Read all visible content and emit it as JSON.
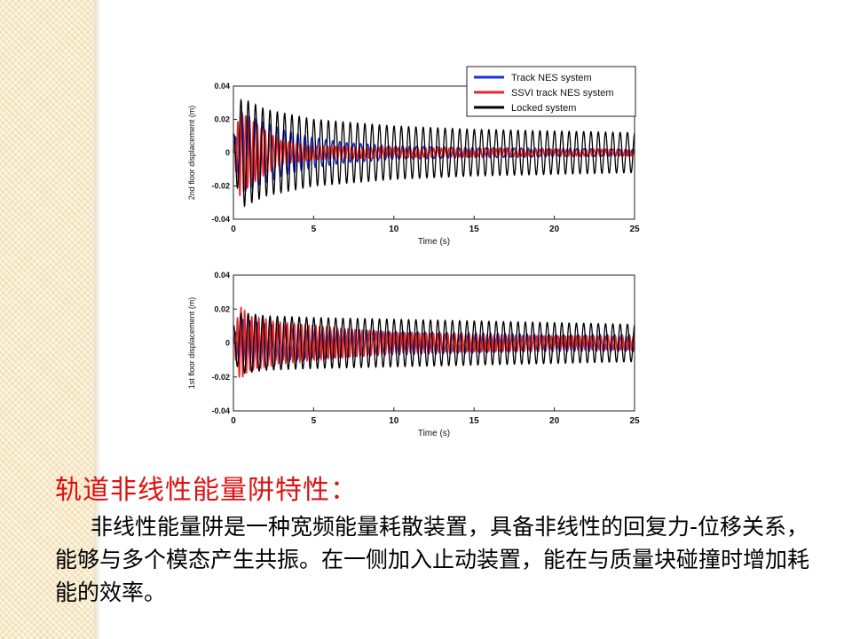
{
  "heading": "轨道非线性能量阱特性：",
  "body": "非线性能量阱是一种宽频能量耗散装置，具备非线性的回复力-位移关系，能够与多个模态产生共振。在一侧加入止动装置，能在与质量块碰撞时增加耗能的效率。",
  "chart_data": [
    {
      "type": "line",
      "xlabel": "Time (s)",
      "ylabel": "2nd floor displacement (m)",
      "xlim": [
        0,
        25
      ],
      "ylim": [
        -0.04,
        0.04
      ],
      "xticks": [
        "0",
        "5",
        "10",
        "15",
        "20",
        "25"
      ],
      "yticks": [
        "0.04",
        "0.02",
        "0",
        "-0.02",
        "-0.04"
      ],
      "legend_position": "top-right",
      "series": [
        {
          "name": "Track NES system",
          "color": "#1f2fe0",
          "frequency_hz": 2.3,
          "amplitude_envelope": {
            "t": [
              0,
              0.5,
              1.5,
              3,
              5,
              7,
              10,
              15,
              20,
              25
            ],
            "a": [
              0.005,
              0.024,
              0.02,
              0.014,
              0.009,
              0.006,
              0.004,
              0.003,
              0.0025,
              0.002
            ]
          }
        },
        {
          "name": "SSVI track NES system",
          "color": "#e8262a",
          "frequency_hz": 4.1,
          "amplitude_envelope": {
            "t": [
              0,
              0.4,
              1,
              2,
              3,
              5,
              10,
              15,
              20,
              25
            ],
            "a": [
              0.002,
              0.026,
              0.02,
              0.013,
              0.007,
              0.004,
              0.003,
              0.0025,
              0.002,
              0.002
            ]
          }
        },
        {
          "name": "Locked system",
          "color": "#000000",
          "frequency_hz": 2.2,
          "amplitude_envelope": {
            "t": [
              0,
              0.5,
              2,
              5,
              10,
              15,
              20,
              25
            ],
            "a": [
              0.01,
              0.033,
              0.026,
              0.02,
              0.016,
              0.014,
              0.013,
              0.012
            ]
          }
        }
      ]
    },
    {
      "type": "line",
      "xlabel": "Time (s)",
      "ylabel": "1st floor displacement (m)",
      "xlim": [
        0,
        25
      ],
      "ylim": [
        -0.04,
        0.04
      ],
      "xticks": [
        "0",
        "5",
        "10",
        "15",
        "20",
        "25"
      ],
      "yticks": [
        "0.04",
        "0.02",
        "0",
        "-0.02",
        "-0.04"
      ],
      "series": [
        {
          "name": "Track NES system",
          "color": "#1f2fe0",
          "frequency_hz": 2.2,
          "amplitude_envelope": {
            "t": [
              0,
              0.5,
              2,
              5,
              10,
              15,
              20,
              25
            ],
            "a": [
              0.004,
              0.014,
              0.011,
              0.009,
              0.007,
              0.006,
              0.005,
              0.005
            ]
          }
        },
        {
          "name": "SSVI track NES system",
          "color": "#e8262a",
          "frequency_hz": 4.5,
          "amplitude_envelope": {
            "t": [
              0,
              0.4,
              1,
              3,
              6,
              10,
              15,
              20,
              25
            ],
            "a": [
              0.003,
              0.022,
              0.016,
              0.012,
              0.009,
              0.006,
              0.005,
              0.004,
              0.004
            ]
          }
        },
        {
          "name": "Locked system",
          "color": "#000000",
          "frequency_hz": 2.2,
          "amplitude_envelope": {
            "t": [
              0,
              0.5,
              2,
              5,
              10,
              15,
              20,
              25
            ],
            "a": [
              0.01,
              0.018,
              0.016,
              0.015,
              0.014,
              0.013,
              0.012,
              0.011
            ]
          }
        }
      ]
    }
  ]
}
